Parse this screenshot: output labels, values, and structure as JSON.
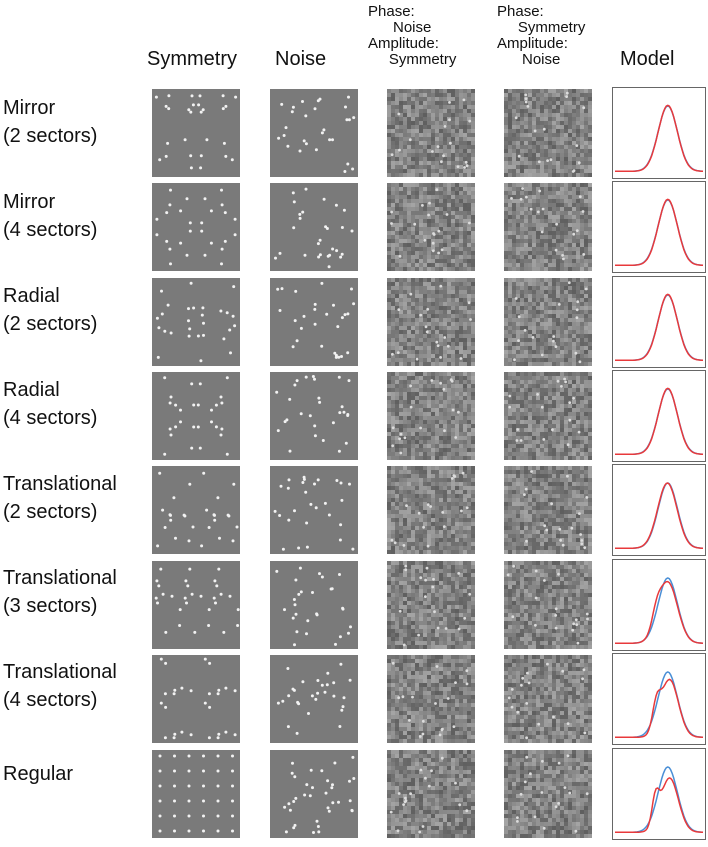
{
  "headers": {
    "symmetry": "Symmetry",
    "noise": "Noise",
    "col3": "Phase:\n      Noise\nAmplitude:\n     Symmetry",
    "col4": "Phase:\n     Symmetry\nAmplitude:\n      Noise",
    "model": "Model"
  },
  "rows": [
    {
      "label": "Mirror\n(2 sectors)"
    },
    {
      "label": "Mirror\n(4 sectors)"
    },
    {
      "label": "Radial\n(2 sectors)"
    },
    {
      "label": "Radial\n(4 sectors)"
    },
    {
      "label": "Translational\n(2 sectors)"
    },
    {
      "label": "Translational\n(3 sectors)"
    },
    {
      "label": "Translational\n(4 sectors)"
    },
    {
      "label": "Regular"
    }
  ],
  "colors": {
    "panel_bg": "#7a7a7a",
    "dot": "#f2f2f2",
    "curve_red": "#e8393b",
    "curve_blue": "#4a8fd6"
  }
}
